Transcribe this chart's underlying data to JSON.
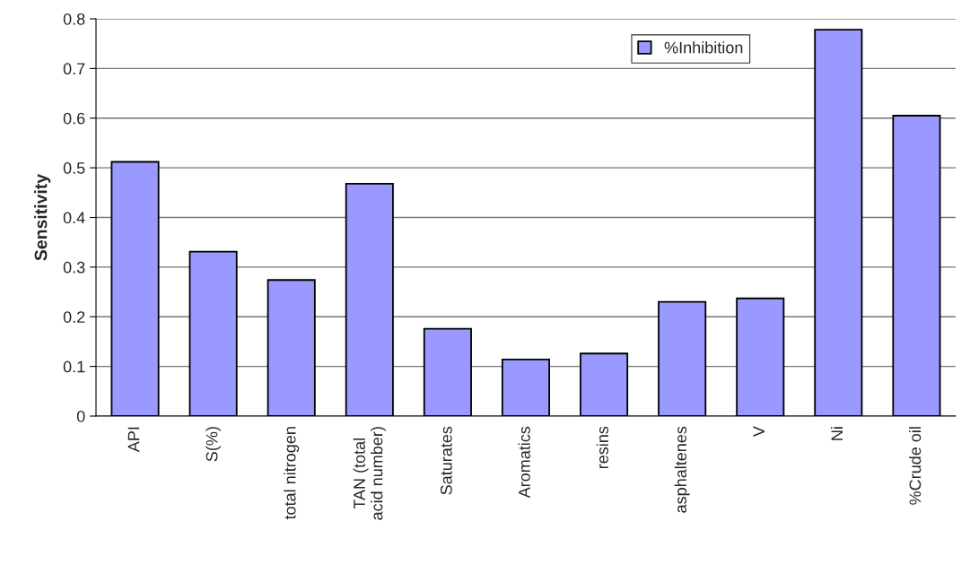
{
  "chart_data": {
    "type": "bar",
    "ylabel": "Sensitivity",
    "categories": [
      "API",
      "S(%)",
      "total nitrogen",
      "TAN (total\nacid number)",
      "Saturates",
      "Aromatics",
      "resins",
      "asphaltenes",
      "V",
      "Ni",
      "%Crude oil"
    ],
    "series": [
      {
        "name": "%Inhibition",
        "color": "#9999ff",
        "values": [
          0.512,
          0.331,
          0.274,
          0.468,
          0.176,
          0.114,
          0.126,
          0.23,
          0.237,
          0.778,
          0.605
        ]
      }
    ],
    "ylim": [
      0,
      0.8
    ],
    "yticks": [
      0,
      0.1,
      0.2,
      0.3,
      0.4,
      0.5,
      0.6,
      0.7,
      0.8
    ],
    "grid": "y",
    "legend": "top right"
  }
}
